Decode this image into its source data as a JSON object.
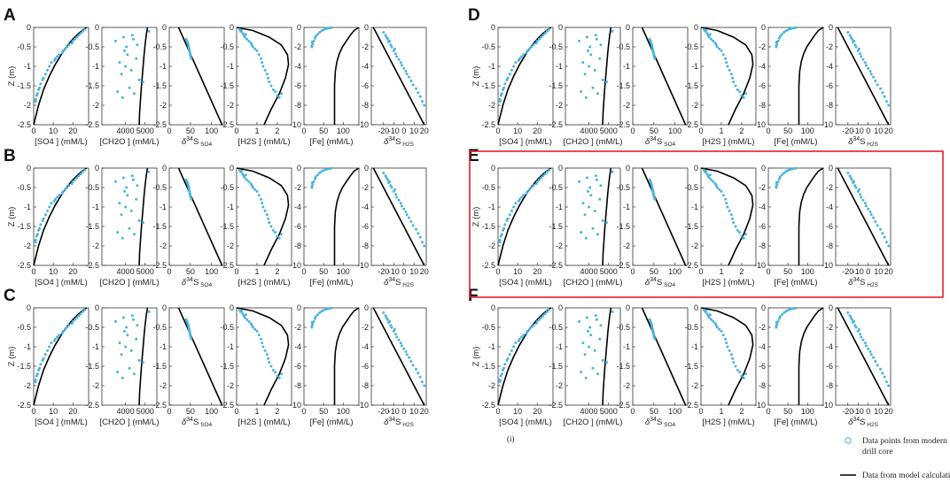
{
  "figure": {
    "note": "(i)",
    "highlight_color": "#e0202a",
    "data_color": "#4bb4de",
    "model_color": "#000000"
  },
  "legend": {
    "data_label_line1": "Data points from modern",
    "data_label_line2": "drill core",
    "model_label": "Data from model calculation"
  },
  "subplot_labels": {
    "SO4": "[SO4 ] (mM/L)",
    "CH2O": "[CH2O ] (mM/L)",
    "d34SO4": {
      "pre": "δ",
      "sup": "34",
      "main": "S",
      "sub": "SO4"
    },
    "H2S": "[H2S ] (mM/L)",
    "Fe": "[Fe] (mM/L)",
    "d34H2S": {
      "pre": "δ",
      "sup": "34",
      "main": "S",
      "sub": "H2S"
    }
  },
  "chart_data": {
    "type": "scatter",
    "panels": [
      "A",
      "B",
      "C",
      "D",
      "E",
      "F"
    ],
    "highlighted_panel": "E",
    "ylabel": "Z (m)",
    "subplots": [
      {
        "key": "SO4",
        "ylim": [
          -2.5,
          0
        ],
        "xlim": [
          0,
          28
        ],
        "xticks": [
          0,
          10,
          20
        ],
        "yticks": [
          0,
          -0.5,
          -1,
          -1.5,
          -2,
          -2.5
        ],
        "model": {
          "x": [
            0,
            2.5,
            5,
            8,
            11,
            14,
            17,
            20,
            23,
            25.5,
            27
          ],
          "y": [
            -2.5,
            -2.0,
            -1.6,
            -1.25,
            -0.95,
            -0.7,
            -0.48,
            -0.3,
            -0.15,
            -0.05,
            0
          ]
        },
        "points": {
          "x": [
            26,
            25,
            24,
            23,
            22,
            21,
            20,
            19.5,
            18,
            17,
            16,
            15,
            14.5,
            13,
            12,
            11,
            10.5,
            9,
            8,
            7,
            6,
            5,
            4.5,
            3.5,
            3,
            2.5,
            2,
            1.5,
            1,
            1
          ],
          "y": [
            -0.05,
            -0.1,
            -0.15,
            -0.2,
            -0.25,
            -0.3,
            -0.35,
            -0.4,
            -0.45,
            -0.5,
            -0.55,
            -0.6,
            -0.65,
            -0.7,
            -0.75,
            -0.8,
            -0.85,
            -0.9,
            -1.0,
            -1.1,
            -1.2,
            -1.3,
            -1.35,
            -1.45,
            -1.55,
            -1.6,
            -1.7,
            -1.75,
            -1.85,
            -1.9
          ]
        }
      },
      {
        "key": "CH2O",
        "ylim": [
          -2.5,
          0
        ],
        "xlim": [
          2800,
          5600
        ],
        "xticks": [
          4000,
          5000
        ],
        "yticks": [
          0,
          -0.5,
          -1,
          -1.5,
          -2,
          -2.5
        ],
        "model": {
          "x": [
            4700,
            4720,
            4760,
            4800,
            4850,
            4900,
            4950,
            5000,
            5060,
            5120
          ],
          "y": [
            -2.5,
            -2.2,
            -1.9,
            -1.6,
            -1.3,
            -1.0,
            -0.7,
            -0.45,
            -0.2,
            0
          ]
        },
        "points": {
          "x": [
            5200,
            3900,
            4400,
            3500,
            4600,
            3950,
            4100,
            4550,
            3700,
            4000,
            4300,
            3800,
            4700,
            4200,
            3600,
            4450,
            4900,
            3850,
            4050,
            4350
          ],
          "y": [
            -0.1,
            -0.25,
            -0.3,
            -0.35,
            -0.45,
            -0.6,
            -0.7,
            -0.8,
            -0.9,
            -1.0,
            -1.1,
            -1.2,
            -1.35,
            -1.55,
            -1.65,
            -1.7,
            -1.4,
            -1.8,
            -0.5,
            -0.2
          ]
        }
      },
      {
        "key": "d34SO4",
        "ylim": [
          -2.5,
          0
        ],
        "xlim": [
          0,
          130
        ],
        "xticks": [
          0,
          50,
          100
        ],
        "yticks": [
          0,
          -0.5,
          -1,
          -1.5,
          -2,
          -2.5
        ],
        "model": {
          "x": [
            22,
            125
          ],
          "y": [
            0,
            -2.5
          ]
        },
        "points": {
          "x": [
            40,
            42,
            43,
            44,
            45,
            46,
            47,
            48,
            48,
            49,
            50,
            50,
            51,
            52
          ],
          "y": [
            -0.3,
            -0.35,
            -0.38,
            -0.42,
            -0.45,
            -0.5,
            -0.55,
            -0.6,
            -0.62,
            -0.66,
            -0.7,
            -0.72,
            -0.75,
            -0.8
          ]
        }
      },
      {
        "key": "H2S",
        "ylim": [
          -2.5,
          0
        ],
        "xlim": [
          0,
          2.7
        ],
        "xticks": [
          0,
          1,
          2
        ],
        "yticks": [
          0,
          -0.5,
          -1,
          -1.5,
          -2,
          -2.5
        ],
        "model": {
          "x": [
            0,
            0.8,
            1.6,
            2.2,
            2.5,
            2.55,
            2.4,
            2.1,
            1.7,
            1.35
          ],
          "y": [
            0,
            -0.08,
            -0.25,
            -0.45,
            -0.7,
            -0.95,
            -1.3,
            -1.7,
            -2.1,
            -2.5
          ]
        },
        "points": {
          "x": [
            0.15,
            0.2,
            0.3,
            0.35,
            0.4,
            0.5,
            0.6,
            0.7,
            0.75,
            0.8,
            0.9,
            1.0,
            1.1,
            1.2,
            1.25,
            1.3,
            1.4,
            1.5,
            1.55,
            1.6,
            1.7,
            1.8,
            1.9,
            2.0,
            2.1,
            2.2,
            0.25,
            0.45
          ],
          "y": [
            -0.05,
            -0.1,
            -0.15,
            -0.2,
            -0.25,
            -0.3,
            -0.35,
            -0.4,
            -0.45,
            -0.5,
            -0.55,
            -0.6,
            -0.7,
            -0.8,
            -0.9,
            -1.0,
            -1.1,
            -1.2,
            -1.3,
            -1.4,
            -1.5,
            -1.6,
            -1.65,
            -1.75,
            -1.8,
            -1.7,
            -0.08,
            -0.18
          ]
        }
      },
      {
        "key": "Fe",
        "ylim": [
          -10,
          0
        ],
        "xlim": [
          0,
          140
        ],
        "xticks": [
          0,
          50,
          100
        ],
        "yticks": [
          0,
          -2,
          -4,
          -6,
          -8,
          -10
        ],
        "model": {
          "x": [
            140,
            128,
            118,
            108,
            98,
            90,
            84,
            80,
            78,
            78
          ],
          "y": [
            0,
            -0.3,
            -0.8,
            -1.4,
            -2.0,
            -2.7,
            -3.5,
            -4.5,
            -6,
            -10
          ]
        },
        "points": {
          "x": [
            20,
            22,
            25,
            28,
            30,
            35,
            40,
            45,
            50,
            55,
            60,
            65,
            70,
            20,
            21
          ],
          "y": [
            -2.0,
            -1.7,
            -1.4,
            -1.1,
            -0.9,
            -0.7,
            -0.5,
            -0.35,
            -0.25,
            -0.15,
            -0.1,
            -0.05,
            -0.02,
            -1.9,
            -1.5
          ]
        }
      },
      {
        "key": "d34H2S",
        "ylim": [
          -10,
          0
        ],
        "xlim": [
          -32,
          22
        ],
        "xticks": [
          -20,
          -10,
          0,
          10,
          20
        ],
        "yticks": [
          0,
          -2,
          -4,
          -6,
          -8,
          -10
        ],
        "model": {
          "x": [
            -30,
            20
          ],
          "y": [
            0,
            -10
          ]
        },
        "points": {
          "x": [
            -20,
            -18,
            -17,
            -16,
            -15,
            -13,
            -12,
            -10,
            -8,
            -7,
            -5,
            -3,
            -2,
            0,
            2,
            3,
            5,
            7,
            9,
            12,
            14,
            16,
            18,
            20,
            -14,
            -9
          ],
          "y": [
            -0.5,
            -0.8,
            -1.0,
            -1.2,
            -1.5,
            -1.8,
            -2.0,
            -2.4,
            -2.7,
            -3.0,
            -3.3,
            -3.6,
            -3.9,
            -4.2,
            -4.5,
            -4.8,
            -5.1,
            -5.5,
            -5.9,
            -6.3,
            -6.7,
            -7.1,
            -7.6,
            -8.0,
            -1.4,
            -2.2
          ]
        }
      }
    ]
  }
}
